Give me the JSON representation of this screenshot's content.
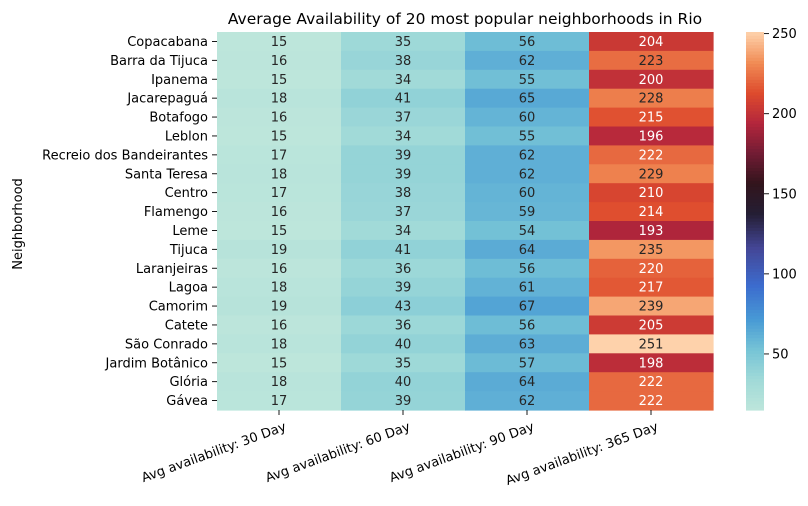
{
  "chart_data": {
    "type": "heatmap",
    "title": "Average Availability of 20 most popular neighborhoods in Rio",
    "xlabel": "",
    "ylabel": "Neighborhood",
    "columns": [
      "Avg availability: 30 Day",
      "Avg availability: 60 Day",
      "Avg availability: 90 Day",
      "Avg availability: 365 Day"
    ],
    "rows": [
      {
        "name": "Copacabana",
        "values": [
          15,
          35,
          56,
          204
        ]
      },
      {
        "name": "Barra da Tijuca",
        "values": [
          16,
          38,
          62,
          223
        ]
      },
      {
        "name": "Ipanema",
        "values": [
          15,
          34,
          55,
          200
        ]
      },
      {
        "name": "Jacarepaguá",
        "values": [
          18,
          41,
          65,
          228
        ]
      },
      {
        "name": "Botafogo",
        "values": [
          16,
          37,
          60,
          215
        ]
      },
      {
        "name": "Leblon",
        "values": [
          15,
          34,
          55,
          196
        ]
      },
      {
        "name": "Recreio dos Bandeirantes",
        "values": [
          17,
          39,
          62,
          222
        ]
      },
      {
        "name": "Santa Teresa",
        "values": [
          18,
          39,
          62,
          229
        ]
      },
      {
        "name": "Centro",
        "values": [
          17,
          38,
          60,
          210
        ]
      },
      {
        "name": "Flamengo",
        "values": [
          16,
          37,
          59,
          214
        ]
      },
      {
        "name": "Leme",
        "values": [
          15,
          34,
          54,
          193
        ]
      },
      {
        "name": "Tijuca",
        "values": [
          19,
          41,
          64,
          235
        ]
      },
      {
        "name": "Laranjeiras",
        "values": [
          16,
          36,
          56,
          220
        ]
      },
      {
        "name": "Lagoa",
        "values": [
          18,
          39,
          61,
          217
        ]
      },
      {
        "name": "Camorim",
        "values": [
          19,
          43,
          67,
          239
        ]
      },
      {
        "name": "Catete",
        "values": [
          16,
          36,
          56,
          205
        ]
      },
      {
        "name": "São Conrado",
        "values": [
          18,
          40,
          63,
          251
        ]
      },
      {
        "name": "Jardim Botânico",
        "values": [
          15,
          35,
          57,
          198
        ]
      },
      {
        "name": "Glória",
        "values": [
          18,
          40,
          64,
          222
        ]
      },
      {
        "name": "Gávea",
        "values": [
          17,
          39,
          62,
          222
        ]
      }
    ],
    "colorbar": {
      "colormap": "icefire",
      "range": [
        15,
        251
      ],
      "ticks": [
        50,
        100,
        150,
        200,
        250
      ]
    },
    "grid": false
  }
}
